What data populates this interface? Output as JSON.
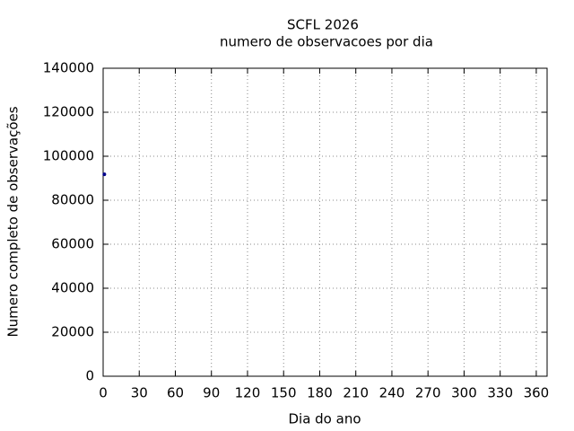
{
  "chart_data": {
    "type": "scatter",
    "title": "SCFL 2026",
    "subtitle": "numero de observacoes por dia",
    "x_label": "Dia do ano",
    "y_label": "Numero completo de observações",
    "series": [
      {
        "name": "observacoes",
        "color": "#00008b",
        "x": [
          1
        ],
        "values": [
          91800
        ]
      }
    ],
    "xlim": [
      0,
      369
    ],
    "xticks": [
      0,
      30,
      60,
      90,
      120,
      150,
      180,
      210,
      240,
      270,
      300,
      330,
      360
    ],
    "ylim": [
      0,
      140000
    ],
    "yticks": [
      0,
      20000,
      40000,
      60000,
      80000,
      100000,
      120000,
      140000
    ],
    "grid": true
  }
}
